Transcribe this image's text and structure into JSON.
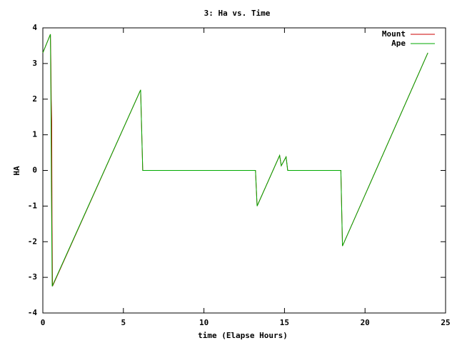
{
  "chart_data": {
    "type": "line",
    "title": "3: Ha vs. Time",
    "x_label": "time (Elapse Hours)",
    "y_label": "HA",
    "series": [
      {
        "name": "Mount",
        "color": "#cc0000",
        "x": [
          0,
          0.47,
          0.5,
          0.52,
          0.55,
          0.57,
          0.6,
          6.07,
          6.2,
          13.2,
          13.3,
          14.7,
          14.8,
          15.1,
          15.2,
          18.5,
          18.6,
          23.9
        ],
        "values": [
          3.3,
          3.82,
          3.0,
          2.0,
          1.4,
          -1.5,
          -3.25,
          2.26,
          0,
          0,
          -1.0,
          0.42,
          0.13,
          0.38,
          0,
          0,
          -2.12,
          3.3
        ]
      },
      {
        "name": "Ape",
        "color": "#00aa00",
        "x": [
          0,
          0.47,
          0.5,
          0.53,
          0.58,
          6.07,
          6.2,
          13.2,
          13.3,
          14.7,
          14.8,
          15.1,
          15.2,
          18.5,
          18.6,
          23.9
        ],
        "values": [
          3.3,
          3.82,
          2.1,
          -0.4,
          -3.25,
          2.26,
          0,
          0,
          -1.0,
          0.42,
          0.13,
          0.38,
          0,
          0,
          -2.12,
          3.3
        ]
      }
    ],
    "xlim": [
      0,
      25
    ],
    "xticks": [
      0,
      5,
      10,
      15,
      20,
      25
    ],
    "ylim": [
      -4,
      4
    ],
    "yticks": [
      -4,
      -3,
      -2,
      -1,
      0,
      1,
      2,
      3,
      4
    ],
    "grid": false,
    "legend_position": "top-right"
  }
}
